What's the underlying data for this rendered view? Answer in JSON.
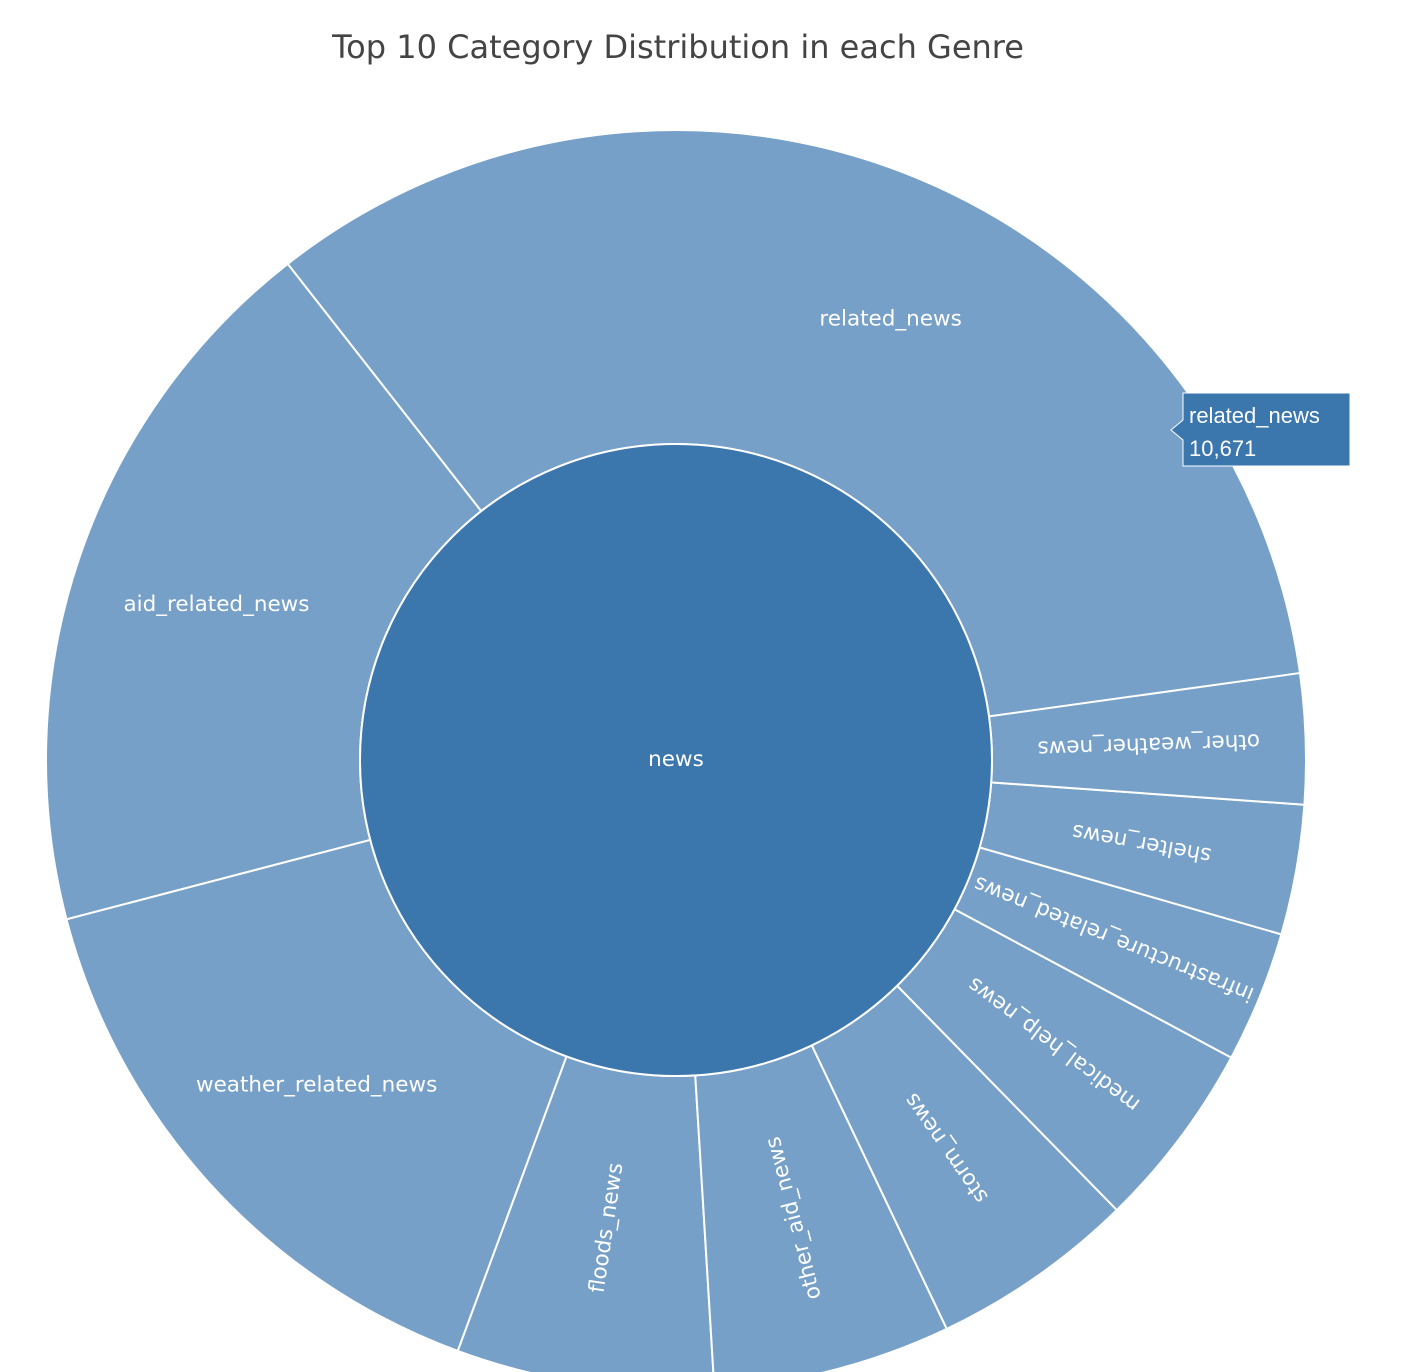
{
  "chart_data": {
    "type": "sunburst",
    "title": "Top 10 Category Distribution in each Genre",
    "root": {
      "label": "news",
      "color": "#3b76ad"
    },
    "leaf_color": "#76a0c7",
    "categories": [
      {
        "label": "related_news",
        "value": 10671
      },
      {
        "label": "aid_related_news",
        "value": 5550
      },
      {
        "label": "weather_related_news",
        "value": 4590
      },
      {
        "label": "floods_news",
        "value": 1980
      },
      {
        "label": "other_aid_news",
        "value": 1830
      },
      {
        "label": "storm_news",
        "value": 1580
      },
      {
        "label": "medical_help_news",
        "value": 1450
      },
      {
        "label": "infrastructure_related_news",
        "value": 1010
      },
      {
        "label": "shelter_news",
        "value": 1000
      },
      {
        "label": "other_weather_news",
        "value": 1000
      }
    ],
    "hover": {
      "label": "related_news",
      "value_text": "10,671"
    }
  }
}
